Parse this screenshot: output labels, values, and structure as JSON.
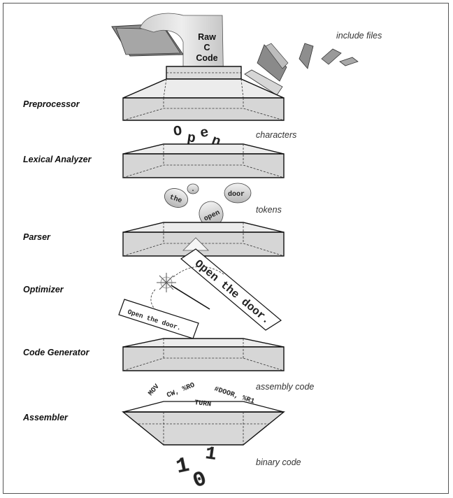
{
  "stages": [
    {
      "id": "preprocessor",
      "label": "Preprocessor"
    },
    {
      "id": "lexical",
      "label": "Lexical Analyzer"
    },
    {
      "id": "parser",
      "label": "Parser"
    },
    {
      "id": "optimizer",
      "label": "Optimizer"
    },
    {
      "id": "codegen",
      "label": "Code Generator"
    },
    {
      "id": "assembler",
      "label": "Assembler"
    }
  ],
  "annotations": {
    "include_files": "include files",
    "characters": "characters",
    "tokens": "tokens",
    "assembly_code": "assembly code",
    "binary_code": "binary code"
  },
  "raw_code": {
    "line1": "Raw",
    "line2": "C",
    "line3": "Code"
  },
  "characters_letters": [
    "O",
    "p",
    "e",
    "n"
  ],
  "tokens": [
    "the",
    ".",
    "door",
    "open"
  ],
  "sentence": {
    "strip": "Open the door.",
    "card": "Open the door."
  },
  "assembly": {
    "word1": "MOV",
    "word2": "CW, %RO",
    "word3": "#DOOR, %R1",
    "word4": "TURN"
  },
  "binary": [
    "1",
    "0",
    "1"
  ],
  "colors": {
    "box_fill": "#d9d9d9",
    "box_top": "#ececec",
    "outline": "#111111",
    "gray_paper": "#9a9a9a"
  }
}
